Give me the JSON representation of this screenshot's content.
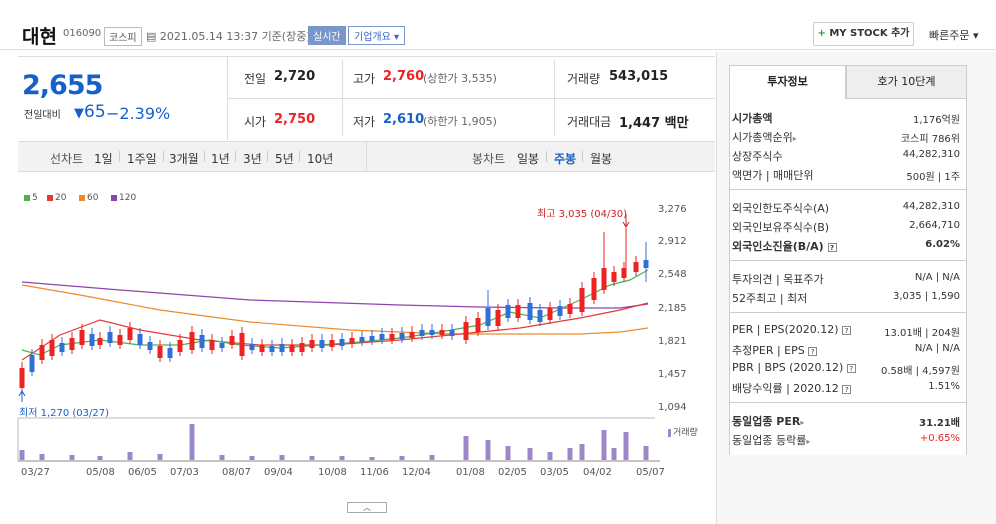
{
  "header": {
    "name": "대현",
    "code": "016090",
    "market": "코스피",
    "datetime": "2021.05.14 13:37 기준(장중)",
    "realtime": "실시간",
    "company_info": "기업개요",
    "mystock": "MY STOCK 추가",
    "quick_order": "빠른주문"
  },
  "price": {
    "current": "2,655",
    "change_label": "전일대비",
    "change": "65",
    "change_pct": "−2.39%"
  },
  "quotes": {
    "prev_label": "전일",
    "prev": "2,720",
    "high_label": "고가",
    "high": "2,760",
    "high_limit": "(상한가 3,535)",
    "vol_label": "거래량",
    "vol": "543,015",
    "open_label": "시가",
    "open": "2,750",
    "low_label": "저가",
    "low": "2,610",
    "low_limit": "(하한가 1,905)",
    "amt_label": "거래대금",
    "amt": "1,447 백만"
  },
  "tabs": {
    "line": "선차트",
    "d1": "1일",
    "w1": "1주일",
    "m3": "3개월",
    "y1": "1년",
    "y3": "3년",
    "y5": "5년",
    "y10": "10년",
    "candle": "봉차트",
    "daily": "일봉",
    "weekly": "주봉",
    "monthly": "월봉"
  },
  "legend": {
    "ma5": "5",
    "ma20": "20",
    "ma60": "60",
    "ma120": "120",
    "c5": "#4caf50",
    "c20": "#e53935",
    "c60": "#ef8a2b",
    "c120": "#8e44ad"
  },
  "chart_data": {
    "type": "candlestick",
    "yticks": [
      "3,276",
      "2,912",
      "2,548",
      "2,185",
      "1,821",
      "1,457",
      "1,094"
    ],
    "ylim": [
      1094,
      3276
    ],
    "xticks": [
      "03/27",
      "05/08",
      "06/05",
      "07/03",
      "08/07",
      "09/04",
      "10/08",
      "11/06",
      "12/04",
      "01/08",
      "02/05",
      "03/05",
      "04/02",
      "05/07"
    ],
    "max_label": "최고 3,035 (04/30)",
    "min_label": "최저 1,270 (03/27)",
    "volume_label": "거래량"
  },
  "info": {
    "tab_invest": "투자정보",
    "tab_hoga": "호가 10단계",
    "mcap_l": "시가총액",
    "mcap_v": "1,176억원",
    "rank_l": "시가총액순위",
    "rank_v": "코스피 786위",
    "shares_l": "상장주식수",
    "shares_v": "44,282,310",
    "par_l": "액면가 | 매매단위",
    "par_v": "500원 | 1주",
    "flimit_l": "외국인한도주식수(A)",
    "flimit_v": "44,282,310",
    "fhold_l": "외국인보유주식수(B)",
    "fhold_v": "2,664,710",
    "fratio_l": "외국인소진율(B/A)",
    "fratio_v": "6.02%",
    "opinion_l": "투자의견 | 목표주가",
    "opinion_v": "N/A | N/A",
    "w52_l": "52주최고 | 최저",
    "w52_v": "3,035 | 1,590",
    "per_l": "PER | EPS(2020.12)",
    "per_v": "13.01배 | 204원",
    "eper_l": "추정PER | EPS",
    "eper_v": "N/A | N/A",
    "pbr_l": "PBR | BPS (2020.12)",
    "pbr_v": "0.58배 | 4,597원",
    "div_l": "배당수익률 | 2020.12",
    "div_v": "1.51%",
    "sper_l": "동일업종 PER",
    "sper_v": "31.21배",
    "srate_l": "동일업종 등락률",
    "srate_v": "+0.65%"
  }
}
